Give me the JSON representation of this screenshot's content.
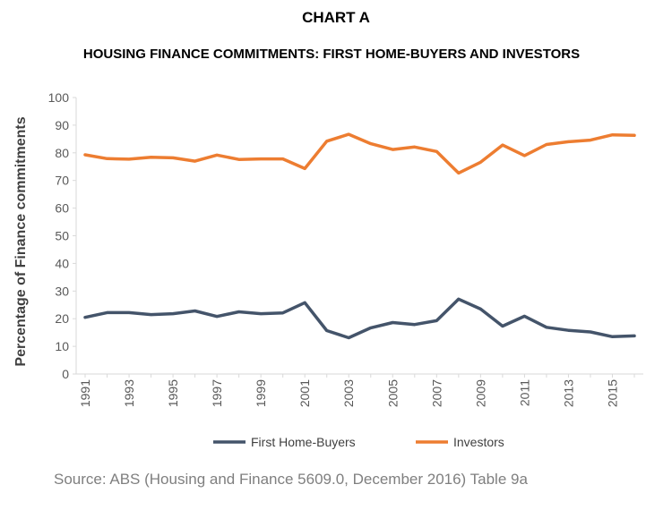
{
  "chart_data": {
    "type": "line",
    "chart_label": "CHART A",
    "title": "HOUSING FINANCE COMMITMENTS: FIRST HOME-BUYERS AND INVESTORS",
    "ylabel": "Percentage of Finance commitments",
    "xlabel": "",
    "source": "Source: ABS (Housing and Finance 5609.0, December 2016) Table 9a",
    "ylim": [
      0,
      100
    ],
    "yticks": [
      0,
      10,
      20,
      30,
      40,
      50,
      60,
      70,
      80,
      90,
      100
    ],
    "x": [
      1991,
      1992,
      1993,
      1994,
      1995,
      1996,
      1997,
      1998,
      1999,
      2000,
      2001,
      2002,
      2003,
      2004,
      2005,
      2006,
      2007,
      2008,
      2009,
      2010,
      2011,
      2012,
      2013,
      2014,
      2015,
      2016
    ],
    "xticks": [
      "1991",
      "1993",
      "1995",
      "1997",
      "1999",
      "2001",
      "2003",
      "2005",
      "2007",
      "2009",
      "2011",
      "2013",
      "2015"
    ],
    "grid": false,
    "legend": "bottom",
    "series": [
      {
        "name": "First Home-Buyers",
        "color": "#44546a",
        "values": [
          20.5,
          22.2,
          22.2,
          21.5,
          21.8,
          22.8,
          20.8,
          22.5,
          21.8,
          22.1,
          25.8,
          15.7,
          13.1,
          16.7,
          18.6,
          17.9,
          19.3,
          27.1,
          23.5,
          17.3,
          20.9,
          16.9,
          15.8,
          15.2,
          13.5,
          13.8
        ]
      },
      {
        "name": "Investors",
        "color": "#ed7d31",
        "values": [
          79.3,
          77.9,
          77.7,
          78.4,
          78.2,
          77.0,
          79.2,
          77.6,
          77.8,
          77.8,
          74.3,
          84.2,
          86.7,
          83.3,
          81.2,
          82.1,
          80.5,
          72.7,
          76.6,
          82.8,
          79.0,
          83.0,
          84.0,
          84.6,
          86.5,
          86.3
        ]
      }
    ]
  }
}
